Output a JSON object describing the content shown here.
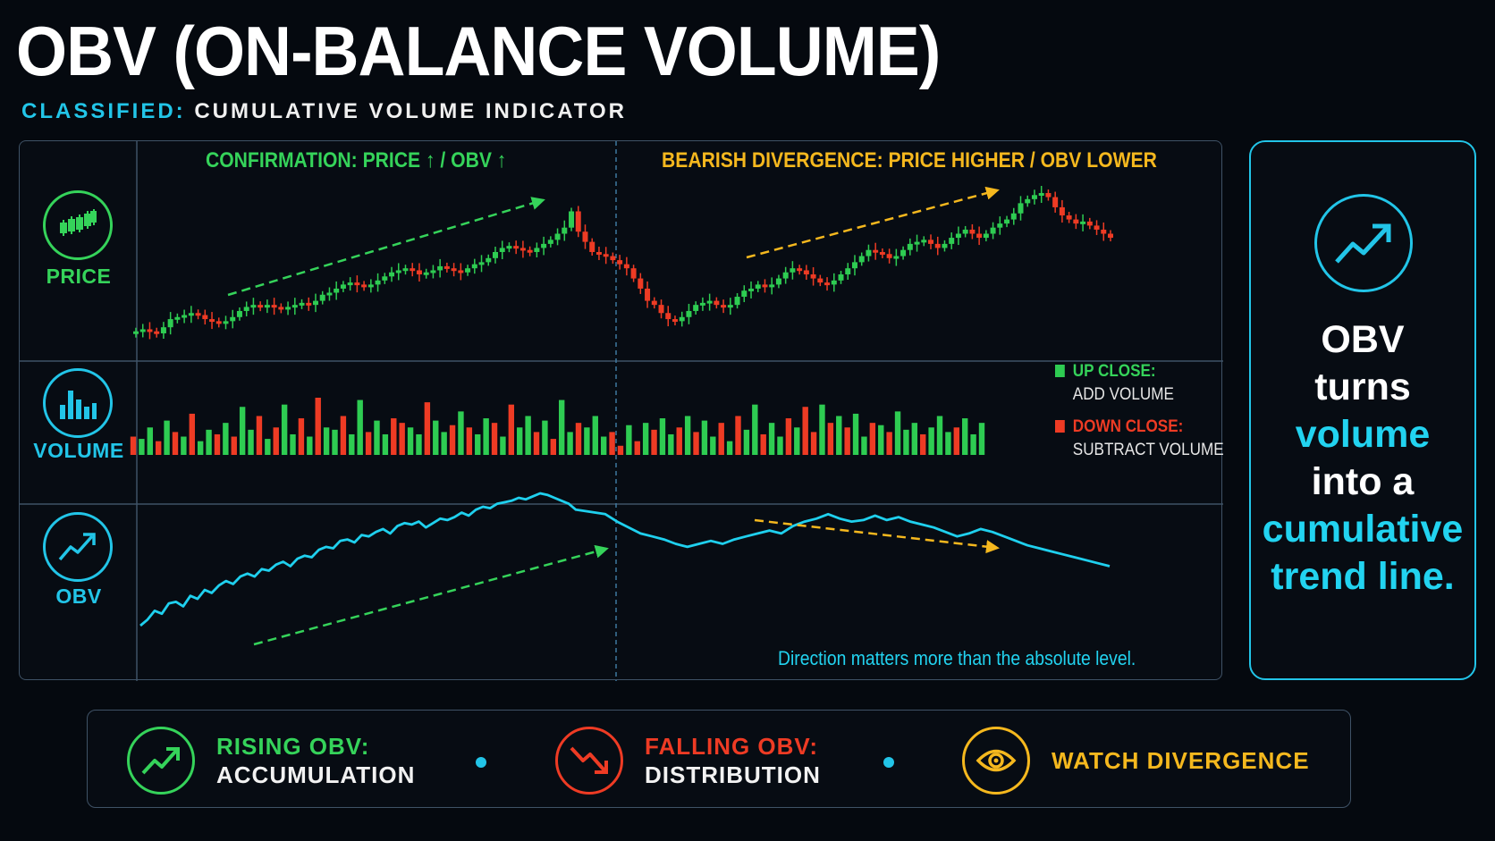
{
  "header": {
    "title": "OBV (ON-BALANCE VOLUME)",
    "classified_label": "CLASSIFIED:",
    "classified_text": "CUMULATIVE VOLUME INDICATOR"
  },
  "rows": {
    "price": {
      "label": "PRICE",
      "icon": "candlestick-icon"
    },
    "volume": {
      "label": "VOLUME",
      "icon": "bar-chart-icon"
    },
    "obv": {
      "label": "OBV",
      "icon": "trend-up-icon"
    }
  },
  "sections": {
    "left_title": "CONFIRMATION: PRICE ↑ / OBV ↑",
    "right_title": "BEARISH DIVERGENCE: PRICE HIGHER / OBV LOWER"
  },
  "legend": {
    "up_key": "UP CLOSE:",
    "up_value": "ADD VOLUME",
    "down_key": "DOWN CLOSE:",
    "down_value": "SUBTRACT VOLUME"
  },
  "note": "Direction matters more than the absolute level.",
  "side_panel": {
    "icon": "trend-up-icon",
    "line1": "OBV",
    "line2": "turns",
    "line3": "volume",
    "line4": "into a",
    "line5": "cumulative",
    "line6": "trend line."
  },
  "bottom_bar": {
    "rising_title": "RISING OBV:",
    "rising_text": "ACCUMULATION",
    "rising_icon": "trend-up-icon",
    "falling_title": "FALLING OBV:",
    "falling_text": "DISTRIBUTION",
    "falling_icon": "trend-down-icon",
    "watch_text": "WATCH DIVERGENCE",
    "watch_icon": "eye-icon"
  },
  "colors": {
    "up": "#2ecc52",
    "down": "#ee3b24",
    "obv_line": "#1fd0ee",
    "accent_cyan": "#22c5e8",
    "accent_yellow": "#f5b81e",
    "accent_green": "#35d35a",
    "accent_red": "#ee3b24"
  },
  "chart_data": {
    "type": "line",
    "price_series": [
      21,
      22,
      21,
      20,
      23,
      27,
      28,
      29,
      30,
      29,
      27,
      26,
      25,
      26,
      28,
      31,
      33,
      34,
      33,
      34,
      33,
      32,
      33,
      34,
      35,
      34,
      36,
      39,
      40,
      42,
      44,
      45,
      44,
      43,
      44,
      46,
      48,
      50,
      51,
      52,
      51,
      49,
      50,
      51,
      53,
      52,
      51,
      50,
      52,
      54,
      55,
      57,
      60,
      62,
      63,
      62,
      61,
      60,
      62,
      64,
      66,
      69,
      72,
      80,
      70,
      65,
      60,
      59,
      58,
      56,
      54,
      52,
      47,
      42,
      36,
      34,
      30,
      27,
      26,
      28,
      31,
      34,
      35,
      36,
      34,
      33,
      34,
      38,
      41,
      42,
      44,
      43,
      44,
      47,
      50,
      52,
      51,
      49,
      47,
      45,
      44,
      46,
      49,
      52,
      55,
      58,
      61,
      60,
      59,
      57,
      58,
      61,
      64,
      65,
      66,
      64,
      62,
      64,
      67,
      69,
      71,
      69,
      67,
      69,
      72,
      74,
      76,
      79,
      84,
      86,
      88,
      89,
      87,
      82,
      78,
      76,
      74,
      75,
      73,
      71,
      69,
      67
    ],
    "volume_series": [
      8,
      7,
      12,
      6,
      15,
      10,
      8,
      18,
      6,
      11,
      9,
      14,
      8,
      21,
      11,
      17,
      7,
      12,
      22,
      9,
      16,
      8,
      25,
      12,
      11,
      17,
      9,
      24,
      10,
      15,
      9,
      16,
      14,
      12,
      9,
      23,
      15,
      10,
      13,
      19,
      12,
      9,
      16,
      14,
      8,
      22,
      12,
      17,
      10,
      15,
      7,
      24,
      10,
      14,
      12,
      17,
      8,
      10,
      4,
      13,
      6,
      14,
      11,
      16,
      9,
      12,
      17,
      10,
      15,
      8,
      14,
      6,
      17,
      11,
      22,
      9,
      14,
      8,
      16,
      12,
      21,
      10,
      22,
      14,
      17,
      12,
      18,
      8,
      14,
      13,
      10,
      19,
      11,
      14,
      9,
      12,
      17,
      10,
      12,
      16,
      9,
      14
    ],
    "volume_direction": [
      "d",
      "u",
      "u",
      "d",
      "u",
      "d",
      "u",
      "d",
      "u",
      "u",
      "d",
      "u",
      "d",
      "u",
      "u",
      "d",
      "u",
      "d",
      "u",
      "u",
      "d",
      "u",
      "d",
      "u",
      "u",
      "d",
      "u",
      "u",
      "d",
      "u",
      "u",
      "d",
      "d",
      "u",
      "u",
      "d",
      "u",
      "u",
      "d",
      "u",
      "d",
      "u",
      "u",
      "d",
      "u",
      "d",
      "u",
      "u",
      "d",
      "u",
      "d",
      "u",
      "u",
      "d",
      "u",
      "u",
      "u",
      "d",
      "d",
      "u",
      "d",
      "u",
      "d",
      "u",
      "u",
      "d",
      "u",
      "d",
      "u",
      "u",
      "d",
      "u",
      "d",
      "u",
      "u",
      "d",
      "u",
      "u",
      "d",
      "u",
      "d",
      "d",
      "u",
      "d",
      "u",
      "d",
      "u",
      "u",
      "d",
      "u",
      "d",
      "u",
      "u",
      "u",
      "d",
      "u",
      "u",
      "u",
      "d",
      "u",
      "u",
      "u"
    ],
    "obv_series": [
      0,
      4,
      10,
      8,
      15,
      16,
      13,
      20,
      18,
      24,
      22,
      27,
      30,
      28,
      33,
      35,
      33,
      38,
      37,
      41,
      43,
      40,
      45,
      47,
      46,
      51,
      53,
      52,
      57,
      58,
      56,
      61,
      60,
      63,
      65,
      62,
      67,
      69,
      68,
      70,
      66,
      69,
      72,
      71,
      73,
      76,
      74,
      78,
      80,
      79,
      82,
      83,
      84,
      86,
      85,
      87,
      89,
      88,
      86,
      84,
      82,
      78,
      75,
      70,
      66,
      62,
      60,
      58,
      55,
      53,
      55,
      57,
      55,
      58,
      60,
      62,
      64,
      62,
      67,
      70,
      72,
      75,
      72,
      70,
      71,
      74,
      71,
      73,
      70,
      68,
      66,
      63,
      60,
      62,
      65,
      63,
      60,
      57,
      54,
      52,
      50,
      48,
      46,
      44,
      42,
      40
    ]
  }
}
